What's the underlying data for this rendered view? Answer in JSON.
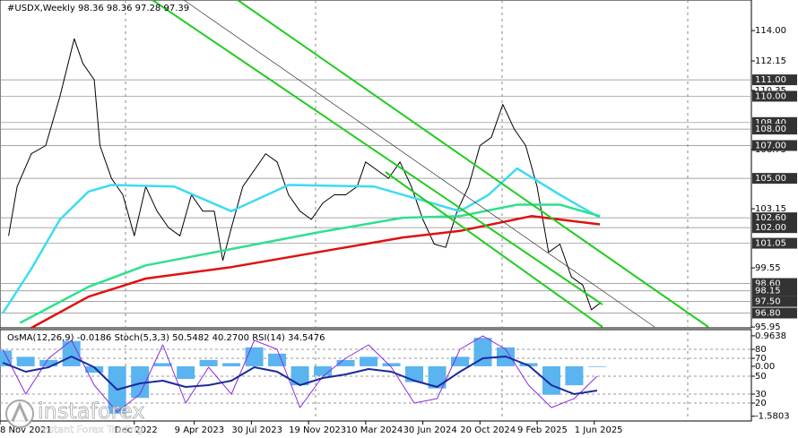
{
  "chart_data": [
    {
      "type": "line",
      "title": "#USDX,Weekly  98.36 98.36 97.28 97.39",
      "xlim": [
        -1,
        262
      ],
      "ylim": [
        95.9,
        115.86
      ],
      "xticks": [
        {
          "value": -1,
          "label": "8 Nov 2021"
        },
        {
          "value": 46,
          "label": "Dec 2022"
        },
        {
          "value": 67,
          "label": "9 Apr 2023"
        },
        {
          "value": 87,
          "label": "30 Jul 2023"
        },
        {
          "value": 107,
          "label": "19 Nov 2023"
        },
        {
          "value": 127,
          "label": "10 Mar 2024"
        },
        {
          "value": 147,
          "label": "30 Jun 2024"
        },
        {
          "value": 167,
          "label": "20 Oct 2024"
        },
        {
          "value": 187,
          "label": "9 Feb 2025"
        },
        {
          "value": 207,
          "label": "1 Jun 2025"
        }
      ],
      "yticks": [
        {
          "value": 114,
          "label": "114.00"
        },
        {
          "value": 112.15,
          "label": "112.15"
        },
        {
          "value": 110.35,
          "label": "110.35"
        },
        {
          "value": 106.75,
          "label": "106.75"
        },
        {
          "value": 103.15,
          "label": "103.15"
        },
        {
          "value": 99.55,
          "label": "99.55"
        },
        {
          "value": 95.95,
          "label": "95.95"
        }
      ],
      "levels": [
        {
          "value": 111,
          "label": "111.00"
        },
        {
          "value": 110,
          "label": "110.00"
        },
        {
          "value": 108.4,
          "label": "108.40"
        },
        {
          "value": 108,
          "label": "108.00"
        },
        {
          "value": 107,
          "label": "107.00"
        },
        {
          "value": 105,
          "label": "105.00"
        },
        {
          "value": 102.6,
          "label": "102.60"
        },
        {
          "value": 102,
          "label": "102.00"
        },
        {
          "value": 101.05,
          "label": "101.05"
        },
        {
          "value": 98.6,
          "label": "98.60"
        },
        {
          "value": 98.15,
          "label": "98.15"
        },
        {
          "value": 97.5,
          "label": "97.50"
        },
        {
          "value": 96.8,
          "label": "96.80"
        }
      ],
      "series": [
        {
          "color": "#000000",
          "width": 1,
          "x": [
            2,
            5,
            10,
            15,
            20,
            25,
            28,
            32,
            34,
            38,
            42,
            46,
            50,
            54,
            58,
            62,
            66,
            70,
            74,
            77,
            80,
            84,
            88,
            92,
            96,
            100,
            104,
            108,
            112,
            116,
            120,
            124,
            127,
            131,
            135,
            139,
            143,
            147,
            151,
            155,
            159,
            163,
            167,
            171,
            175,
            179,
            183,
            187,
            191,
            195,
            199,
            203,
            206,
            209
          ],
          "values": [
            101.5,
            104.5,
            106.5,
            107,
            110,
            113.5,
            112,
            111,
            107,
            105,
            104,
            101.5,
            104.5,
            103,
            102,
            101.5,
            104,
            103,
            103,
            100,
            102,
            104.5,
            105.5,
            106.5,
            106,
            104,
            103,
            102.5,
            103.5,
            104,
            104,
            104.5,
            106,
            105.5,
            105,
            106,
            104.5,
            102.5,
            101,
            100.8,
            103,
            104.5,
            107,
            107.5,
            109.5,
            108,
            107,
            104.5,
            100.5,
            101,
            99,
            98.5,
            97,
            97.4
          ]
        },
        {
          "color": "#3cdcf0",
          "width": 2.5,
          "x": [
            0,
            10,
            20,
            30,
            38,
            60,
            80,
            100,
            130,
            150,
            160,
            170,
            180,
            195,
            209
          ],
          "values": [
            96.8,
            99.5,
            102.5,
            104.2,
            104.6,
            104.5,
            103,
            104.6,
            104.5,
            103.5,
            103,
            104,
            105.6,
            104,
            102.6
          ]
        },
        {
          "color": "#2ee08e",
          "width": 2.5,
          "x": [
            6,
            30,
            50,
            80,
            110,
            140,
            160,
            180,
            195,
            209
          ],
          "values": [
            96.2,
            98.4,
            99.7,
            100.7,
            101.7,
            102.6,
            102.7,
            103.4,
            103.4,
            102.7
          ]
        },
        {
          "color": "#e01010",
          "width": 2.5,
          "x": [
            10,
            30,
            50,
            80,
            110,
            140,
            160,
            185,
            209
          ],
          "values": [
            95.9,
            97.8,
            98.9,
            99.6,
            100.5,
            101.4,
            101.8,
            102.7,
            102.2
          ]
        }
      ]
    },
    {
      "type": "line",
      "title": "OsMA(12,26,9) -0.0186  Stoch(5,3,3) 50.5482 40.2700  RSI(14) 34.5476",
      "xlim": [
        -1,
        262
      ],
      "ylim": [
        0,
        102
      ],
      "y2lim": [
        -1.73,
        1.16
      ],
      "yticks": [
        80,
        70,
        50,
        30,
        20
      ],
      "y2ticks": [
        0.9638,
        {
          "value": 0,
          "label": "0.00"
        },
        -1.5803
      ],
      "series": [
        {
          "style": "bar",
          "axis": "y2",
          "color": "#5ab4f0",
          "x": [
            0,
            8,
            16,
            24,
            32,
            40,
            48,
            56,
            64,
            72,
            80,
            88,
            96,
            104,
            112,
            120,
            128,
            136,
            144,
            152,
            160,
            168,
            176,
            184,
            192,
            200,
            208
          ],
          "values": [
            0.5,
            0.3,
            0.2,
            0.8,
            -0.2,
            -1.5,
            -1,
            0.1,
            -0.4,
            0.2,
            0.1,
            0.6,
            0.4,
            -0.6,
            -0.3,
            0.2,
            0.3,
            0.1,
            -0.5,
            -0.7,
            0.3,
            0.9,
            0.6,
            0.1,
            -0.9,
            -0.6,
            -0.02
          ]
        },
        {
          "color": "#8a2be2",
          "width": 1,
          "x": [
            0,
            8,
            16,
            24,
            32,
            40,
            48,
            56,
            64,
            72,
            80,
            88,
            96,
            104,
            112,
            120,
            128,
            136,
            144,
            152,
            160,
            168,
            176,
            184,
            192,
            200,
            208
          ],
          "values": [
            80,
            30,
            70,
            90,
            40,
            10,
            30,
            85,
            20,
            60,
            30,
            90,
            80,
            15,
            50,
            70,
            85,
            60,
            20,
            25,
            80,
            95,
            80,
            40,
            15,
            25,
            50
          ]
        },
        {
          "color": "#1a2a9a",
          "width": 2,
          "x": [
            0,
            8,
            16,
            24,
            32,
            40,
            48,
            56,
            64,
            72,
            80,
            88,
            96,
            104,
            112,
            120,
            128,
            136,
            144,
            152,
            160,
            168,
            176,
            184,
            192,
            200,
            208
          ],
          "values": [
            65,
            55,
            60,
            72,
            60,
            35,
            42,
            45,
            38,
            40,
            45,
            60,
            55,
            40,
            48,
            52,
            58,
            55,
            45,
            38,
            55,
            70,
            72,
            62,
            40,
            30,
            34
          ]
        }
      ]
    }
  ],
  "watermark": {
    "brand": "instaforex",
    "tagline": "Instant Forex Trading"
  }
}
